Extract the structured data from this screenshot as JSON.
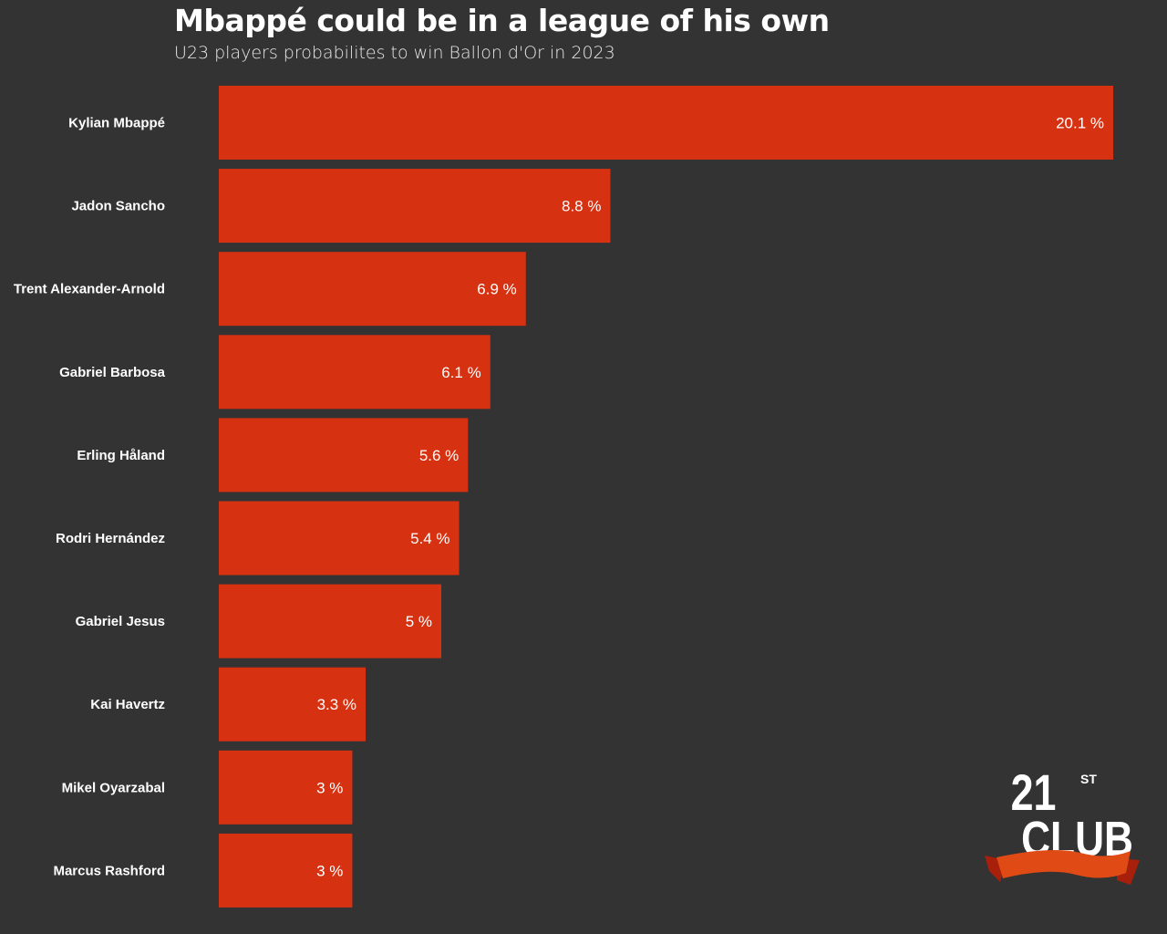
{
  "chart_data": {
    "type": "bar",
    "orientation": "horizontal",
    "title": "Mbappé could be in a league of his own",
    "subtitle": "U23 players probabilites to win Ballon d'Or in 2023",
    "categories": [
      "Kylian Mbappé",
      "Jadon Sancho",
      "Trent Alexander-Arnold",
      "Gabriel Barbosa",
      "Erling Håland",
      "Rodri Hernández",
      "Gabriel Jesus",
      "Kai Havertz",
      "Mikel Oyarzabal",
      "Marcus Rashford"
    ],
    "values": [
      20.1,
      8.8,
      6.9,
      6.1,
      5.6,
      5.4,
      5,
      3.3,
      3,
      3
    ],
    "value_labels": [
      "20.1 %",
      "8.8 %",
      "6.9 %",
      "6.1 %",
      "5.6 %",
      "5.4 %",
      "5 %",
      "3.3 %",
      "3 %",
      "3 %"
    ],
    "xlabel": "",
    "ylabel": "",
    "xlim": [
      0,
      20.1
    ],
    "grid": false,
    "colors": {
      "bar": "#d63212",
      "background": "#333333",
      "text": "#ffffff"
    }
  },
  "logo": {
    "number": "21",
    "suffix": "ST",
    "word": "CLUB"
  }
}
